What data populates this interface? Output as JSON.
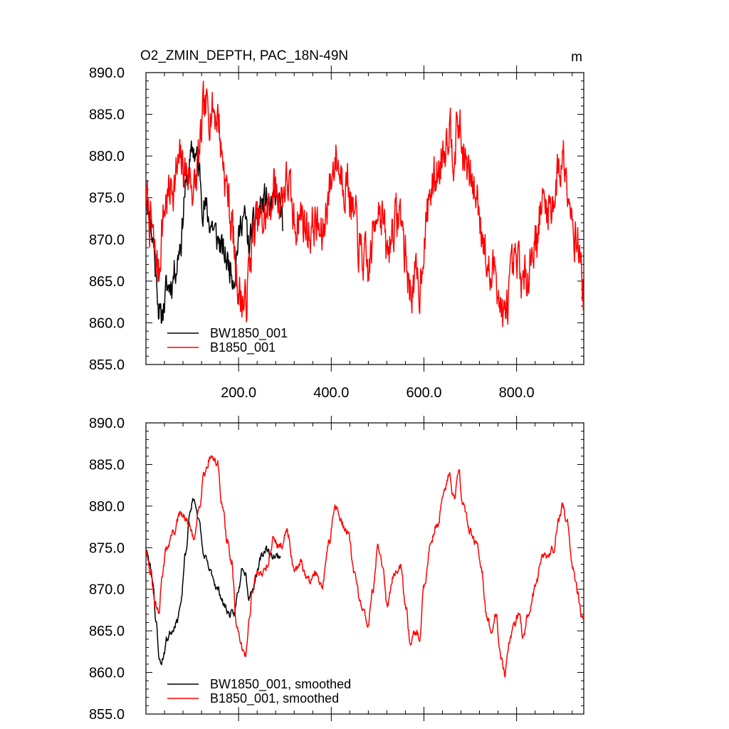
{
  "chart_data": [
    {
      "type": "line",
      "title": "O2_ZMIN_DEPTH, PAC_18N-49N",
      "units": "m",
      "xlim": [
        0,
        945
      ],
      "ylim": [
        855,
        890
      ],
      "x_ticks": [
        200,
        400,
        600,
        800
      ],
      "x_tick_labels": [
        "200.0",
        "400.0",
        "600.0",
        "800.0"
      ],
      "y_ticks": [
        855,
        860,
        865,
        870,
        875,
        880,
        885,
        890
      ],
      "y_tick_labels": [
        "855.0",
        "860.0",
        "865.0",
        "870.0",
        "875.0",
        "880.0",
        "885.0",
        "890.0"
      ],
      "legend_position": "bottom-left",
      "series": [
        {
          "name": "BW1850_001",
          "color": "#000000",
          "noise": 2.0,
          "seed": 11,
          "x": [
            0,
            8,
            15,
            22,
            28,
            32,
            38,
            45,
            55,
            65,
            75,
            85,
            95,
            102,
            108,
            115,
            125,
            140,
            155,
            170,
            180,
            190,
            200,
            208,
            215,
            222,
            230,
            240,
            250,
            260,
            270,
            280,
            290,
            295
          ],
          "y": [
            876,
            873,
            870,
            866,
            862,
            860,
            862,
            864,
            865,
            867,
            870,
            876,
            879,
            881,
            880,
            878,
            874,
            872,
            870,
            868,
            867,
            866,
            870,
            873,
            872,
            869,
            871,
            873,
            874,
            875,
            873,
            875,
            874,
            871
          ]
        },
        {
          "name": "B1850_001",
          "color": "#ff0000",
          "noise": 3.0,
          "seed": 7,
          "x": [
            0,
            10,
            20,
            28,
            35,
            45,
            60,
            75,
            90,
            105,
            115,
            125,
            140,
            155,
            165,
            175,
            185,
            195,
            205,
            215,
            222,
            230,
            240,
            250,
            262,
            275,
            290,
            305,
            320,
            335,
            350,
            365,
            380,
            395,
            410,
            420,
            435,
            450,
            465,
            480,
            490,
            500,
            510,
            520,
            535,
            550,
            560,
            570,
            580,
            590,
            600,
            615,
            630,
            645,
            655,
            665,
            675,
            685,
            700,
            715,
            725,
            735,
            745,
            755,
            765,
            775,
            785,
            795,
            805,
            815,
            825,
            840,
            855,
            870,
            880,
            890,
            900,
            910,
            920,
            930,
            940,
            945
          ],
          "y": [
            875,
            872,
            868,
            866,
            872,
            875,
            877,
            879,
            878,
            876,
            880,
            885,
            886,
            885,
            880,
            876,
            872,
            866,
            863,
            862,
            866,
            870,
            872,
            872,
            873,
            876,
            875,
            877,
            872,
            873,
            871,
            872,
            870,
            876,
            880,
            878,
            877,
            872,
            868,
            866,
            870,
            875,
            873,
            868,
            872,
            873,
            868,
            864,
            865,
            864,
            870,
            876,
            878,
            882,
            884,
            881,
            884,
            880,
            877,
            875,
            872,
            867,
            865,
            867,
            862,
            860,
            864,
            866,
            867,
            864,
            867,
            870,
            874,
            874,
            875,
            878,
            880,
            878,
            873,
            870,
            867,
            863
          ]
        }
      ]
    },
    {
      "type": "line",
      "title": "",
      "xlim": [
        0,
        945
      ],
      "ylim": [
        855,
        890
      ],
      "y_ticks": [
        855,
        860,
        865,
        870,
        875,
        880,
        885,
        890
      ],
      "y_tick_labels": [
        "855.0",
        "860.0",
        "865.0",
        "870.0",
        "875.0",
        "880.0",
        "885.0",
        "890.0"
      ],
      "legend_position": "bottom-left",
      "series": [
        {
          "name": "BW1850_001, smoothed",
          "color": "#000000",
          "noise": 0.45,
          "seed": 23,
          "x": [
            0,
            8,
            15,
            22,
            28,
            32,
            38,
            45,
            55,
            65,
            75,
            85,
            95,
            102,
            108,
            115,
            125,
            140,
            155,
            170,
            180,
            190,
            200,
            208,
            215,
            222,
            230,
            240,
            250,
            260,
            270,
            280,
            290
          ],
          "y": [
            875,
            873,
            871,
            866,
            862,
            861,
            862,
            864,
            865,
            866,
            868,
            874,
            879,
            881,
            880,
            878,
            874,
            872,
            870,
            868,
            867,
            867,
            870,
            873,
            872,
            869,
            870,
            872,
            874,
            875,
            874,
            874,
            874
          ]
        },
        {
          "name": "B1850_001, smoothed",
          "color": "#ff0000",
          "noise": 0.55,
          "seed": 31,
          "x": [
            0,
            10,
            20,
            28,
            35,
            45,
            60,
            75,
            90,
            105,
            115,
            125,
            140,
            155,
            165,
            175,
            185,
            195,
            205,
            215,
            222,
            230,
            240,
            250,
            262,
            275,
            290,
            305,
            320,
            335,
            350,
            365,
            380,
            395,
            410,
            420,
            435,
            450,
            465,
            480,
            490,
            500,
            510,
            520,
            535,
            550,
            560,
            570,
            580,
            590,
            600,
            615,
            630,
            645,
            655,
            665,
            675,
            685,
            700,
            715,
            725,
            735,
            745,
            755,
            765,
            775,
            785,
            795,
            805,
            815,
            825,
            840,
            855,
            870,
            880,
            890,
            900,
            910,
            920,
            930,
            940,
            945
          ],
          "y": [
            875,
            872,
            868,
            867,
            872,
            875,
            877,
            879,
            878,
            876,
            880,
            884,
            886,
            885,
            880,
            876,
            873,
            866,
            863,
            862,
            866,
            870,
            872,
            872,
            873,
            876,
            875,
            877,
            872,
            873,
            871,
            872,
            870,
            876,
            880,
            878,
            877,
            872,
            868,
            866,
            870,
            875,
            873,
            868,
            872,
            873,
            868,
            864,
            865,
            864,
            870,
            876,
            878,
            882,
            884,
            881,
            884,
            880,
            877,
            875,
            872,
            867,
            865,
            867,
            862,
            860,
            864,
            866,
            867,
            864,
            867,
            870,
            874,
            874,
            875,
            878,
            880,
            878,
            873,
            870,
            867,
            866
          ]
        }
      ]
    }
  ]
}
